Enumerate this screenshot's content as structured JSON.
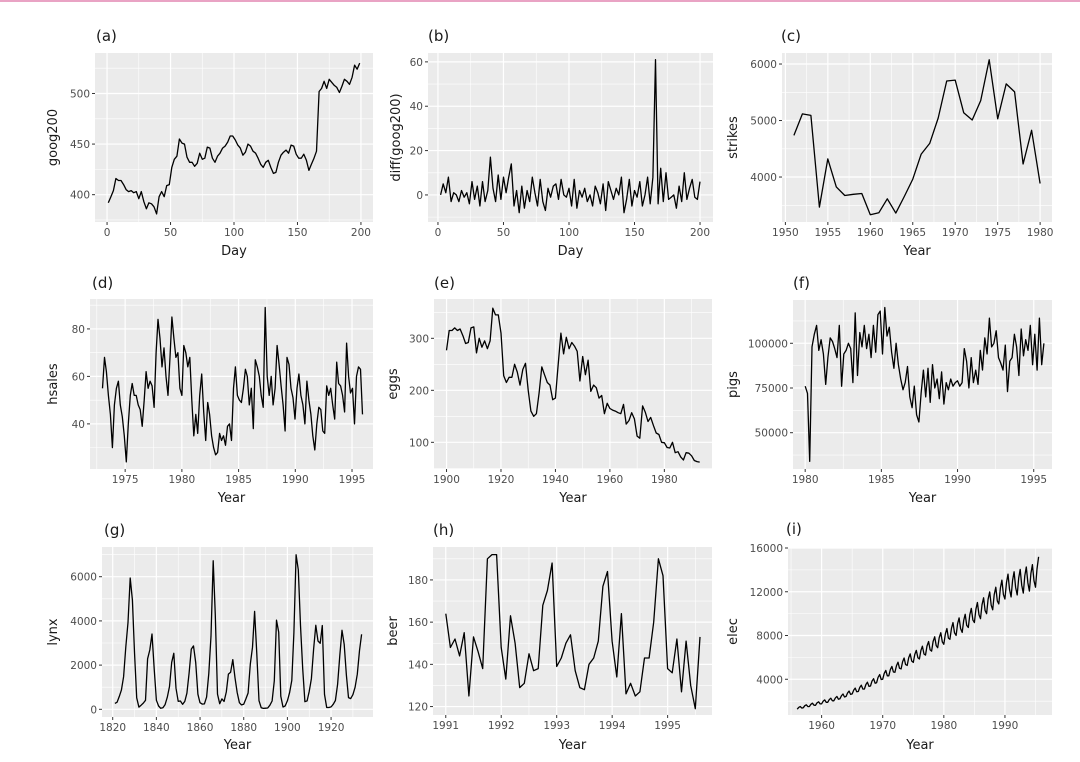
{
  "chart_data": [
    {
      "panel_label": "(a)",
      "type": "line",
      "xlabel": "Day",
      "ylabel": "goog200",
      "xlim": [
        -9.5,
        209.5
      ],
      "ylim": [
        373,
        540
      ],
      "xticks": [
        0,
        50,
        100,
        150,
        200
      ],
      "yticks": [
        400,
        450,
        500
      ],
      "x_start": 1,
      "x_end": 199,
      "grid": true,
      "values": [
        392,
        398,
        404,
        416,
        414,
        414,
        410,
        405,
        403,
        404,
        402,
        403,
        396,
        403,
        393,
        386,
        392,
        391,
        388,
        381,
        398,
        403,
        398,
        409,
        410,
        427,
        435,
        438,
        455,
        451,
        450,
        437,
        432,
        432,
        428,
        431,
        441,
        435,
        436,
        447,
        446,
        436,
        432,
        438,
        441,
        446,
        448,
        452,
        458,
        458,
        454,
        449,
        446,
        439,
        442,
        450,
        448,
        443,
        441,
        436,
        430,
        427,
        432,
        434,
        427,
        421,
        422,
        432,
        439,
        442,
        444,
        441,
        449,
        448,
        440,
        436,
        436,
        440,
        434,
        424,
        430,
        436,
        443,
        502,
        505,
        512,
        505,
        514,
        511,
        508,
        506,
        501,
        507,
        514,
        512,
        509,
        516,
        528,
        524,
        530
      ]
    },
    {
      "panel_label": "(b)",
      "type": "line",
      "xlabel": "Day",
      "ylabel": "diff(goog200)",
      "xlim": [
        -7.6,
        209.9
      ],
      "ylim": [
        -12.2,
        64
      ],
      "xticks": [
        0,
        50,
        100,
        150,
        200
      ],
      "yticks": [
        0,
        20,
        40,
        60
      ],
      "x_start": 2,
      "x_end": 200,
      "grid": true,
      "values": [
        0,
        5,
        1,
        8,
        -3,
        1,
        0,
        -3,
        2,
        -1,
        1,
        -4,
        6,
        -2,
        4,
        -5,
        6,
        -3,
        2,
        17,
        3,
        -3,
        9,
        -2,
        8,
        1,
        8,
        14,
        -5,
        2,
        -8,
        4,
        -6,
        2,
        -3,
        8,
        1,
        -5,
        7,
        -3,
        -7,
        3,
        -1,
        4,
        5,
        -2,
        7,
        0,
        -1,
        3,
        -5,
        7,
        -6,
        2,
        -1,
        3,
        -3,
        0,
        -5,
        4,
        1,
        -4,
        5,
        -7,
        6,
        2,
        -2,
        3,
        0,
        8,
        -8,
        -2,
        7,
        -5,
        2,
        -1,
        6,
        -5,
        0,
        8,
        -4,
        8,
        61,
        -4,
        12,
        -3,
        10,
        -2,
        -1,
        0,
        -6,
        4,
        -3,
        10,
        -2,
        3,
        7,
        -1,
        -2,
        6
      ]
    },
    {
      "panel_label": "(c)",
      "type": "line",
      "xlabel": "Year",
      "ylabel": "strikes",
      "xlim": [
        1949.6,
        1981.4
      ],
      "ylim": [
        3204,
        6195
      ],
      "xticks": [
        1950,
        1955,
        1960,
        1965,
        1970,
        1975,
        1980
      ],
      "yticks": [
        4000,
        5000,
        6000
      ],
      "x_start": 1951,
      "x_end": 1980,
      "grid": true,
      "values": [
        4737,
        5117,
        5091,
        3468,
        4320,
        3825,
        3673,
        3694,
        3708,
        3333,
        3367,
        3614,
        3362,
        3655,
        3963,
        4405,
        4595,
        5045,
        5700,
        5716,
        5138,
        5010,
        5353,
        6074,
        5031,
        5648,
        5506,
        4230,
        4827,
        3885
      ]
    },
    {
      "panel_label": "(d)",
      "type": "line",
      "xlabel": "Year",
      "ylabel": "hsales",
      "xlim": [
        1971.9,
        1996.85
      ],
      "ylim": [
        21,
        92.6
      ],
      "xticks": [
        1975,
        1980,
        1985,
        1990,
        1995
      ],
      "yticks": [
        40,
        60,
        80
      ],
      "x_start": 1973,
      "x_end": 1995.92,
      "grid": true,
      "values": [
        55,
        68,
        62,
        52,
        44,
        30,
        48,
        55,
        58,
        48,
        43,
        35,
        24,
        40,
        52,
        57,
        52,
        52,
        48,
        46,
        39,
        50,
        62,
        55,
        58,
        56,
        47,
        70,
        84,
        76,
        64,
        72,
        60,
        52,
        68,
        85,
        76,
        68,
        70,
        55,
        52,
        73,
        70,
        64,
        68,
        50,
        35,
        44,
        36,
        52,
        61,
        45,
        33,
        49,
        44,
        35,
        30,
        27,
        28,
        36,
        33,
        35,
        31,
        39,
        40,
        33,
        55,
        64,
        52,
        50,
        49,
        55,
        63,
        60,
        48,
        55,
        38,
        67,
        64,
        60,
        52,
        47,
        89,
        60,
        52,
        60,
        48,
        55,
        73,
        65,
        56,
        48,
        37,
        68,
        65,
        55,
        51,
        42,
        55,
        61,
        52,
        48,
        40,
        58,
        50,
        44,
        35,
        29,
        40,
        47,
        46,
        37,
        36,
        56,
        52,
        55,
        48,
        42,
        66,
        57,
        56,
        52,
        45,
        74,
        60,
        53,
        55,
        40,
        60,
        64,
        63,
        44
      ]
    },
    {
      "panel_label": "(e)",
      "type": "line",
      "xlabel": "Year",
      "ylabel": "eggs",
      "xlim": [
        1895.4,
        1997.5
      ],
      "ylim": [
        48.7,
        375.6
      ],
      "xticks": [
        1900,
        1920,
        1940,
        1960,
        1980
      ],
      "yticks": [
        100,
        200,
        300
      ],
      "x_start": 1900,
      "x_end": 1993,
      "grid": true,
      "values": [
        277,
        315,
        315,
        320,
        315,
        318,
        305,
        290,
        292,
        320,
        322,
        272,
        300,
        283,
        295,
        280,
        295,
        358,
        345,
        345,
        310,
        228,
        215,
        225,
        225,
        250,
        235,
        210,
        240,
        252,
        200,
        160,
        150,
        155,
        195,
        245,
        230,
        215,
        210,
        182,
        185,
        250,
        310,
        270,
        302,
        280,
        292,
        285,
        275,
        218,
        265,
        230,
        258,
        198,
        210,
        205,
        185,
        190,
        155,
        175,
        165,
        162,
        160,
        157,
        155,
        173,
        135,
        142,
        157,
        145,
        112,
        108,
        170,
        158,
        140,
        148,
        132,
        118,
        115,
        100,
        99,
        90,
        89,
        100,
        80,
        82,
        72,
        66,
        80,
        79,
        74,
        65,
        63,
        62
      ]
    },
    {
      "panel_label": "(f)",
      "type": "line",
      "xlabel": "Year",
      "ylabel": "pigs",
      "xlim": [
        1979.2,
        1996.2
      ],
      "ylim": [
        29700,
        124200
      ],
      "xticks": [
        1980,
        1985,
        1990,
        1995
      ],
      "yticks": [
        50000,
        75000,
        100000
      ],
      "x_start": 1980,
      "x_end": 1995.67,
      "grid": true,
      "values": [
        76000,
        72000,
        34000,
        98000,
        105000,
        110000,
        96000,
        102000,
        94000,
        77000,
        92000,
        103000,
        101000,
        97000,
        92000,
        110000,
        76000,
        94000,
        96000,
        100000,
        97000,
        78000,
        117000,
        82000,
        106000,
        98000,
        110000,
        97000,
        105000,
        92000,
        110000,
        95000,
        116000,
        118000,
        94000,
        120000,
        104000,
        109000,
        95000,
        86000,
        100000,
        88000,
        80000,
        74000,
        78000,
        87000,
        70000,
        64000,
        76000,
        60000,
        56000,
        72000,
        85000,
        70000,
        86000,
        67000,
        88000,
        75000,
        80000,
        69000,
        84000,
        66000,
        78000,
        74000,
        80000,
        76000,
        78000,
        79000,
        76000,
        78000,
        97000,
        90000,
        75000,
        92000,
        78000,
        85000,
        77000,
        96000,
        85000,
        103000,
        94000,
        114000,
        98000,
        100000,
        107000,
        92000,
        89000,
        85000,
        99000,
        73000,
        90000,
        92000,
        105000,
        98000,
        82000,
        108000,
        93000,
        102000,
        96000,
        110000,
        88000,
        105000,
        85000,
        114000,
        88000,
        100000
      ]
    },
    {
      "panel_label": "(g)",
      "type": "line",
      "xlabel": "Year",
      "ylabel": "lynx",
      "xlim": [
        1815.1,
        1939.2
      ],
      "ylim": [
        -348,
        7344
      ],
      "xticks": [
        1820,
        1840,
        1860,
        1880,
        1900,
        1920
      ],
      "yticks": [
        0,
        2000,
        4000,
        6000
      ],
      "x_start": 1821,
      "x_end": 1934,
      "grid": true,
      "values": [
        269,
        321,
        585,
        871,
        1475,
        2821,
        3928,
        5943,
        4950,
        2577,
        523,
        98,
        184,
        279,
        409,
        2285,
        2685,
        3409,
        1824,
        409,
        151,
        45,
        68,
        213,
        546,
        1033,
        2129,
        2536,
        957,
        361,
        377,
        225,
        360,
        731,
        1638,
        2725,
        2871,
        2119,
        684,
        299,
        236,
        245,
        552,
        1623,
        3311,
        6721,
        4254,
        687,
        255,
        473,
        358,
        784,
        1594,
        1676,
        2251,
        1426,
        756,
        299,
        201,
        229,
        469,
        736,
        2042,
        2811,
        4431,
        2511,
        389,
        73,
        39,
        49,
        59,
        188,
        377,
        1292,
        4031,
        3495,
        587,
        105,
        153,
        387,
        758,
        1307,
        3465,
        6991,
        6313,
        3794,
        1836,
        345,
        382,
        808,
        1388,
        2713,
        3800,
        3091,
        2985,
        3790,
        674,
        81,
        80,
        108,
        229,
        399,
        1132,
        2432,
        3574,
        2935,
        1537,
        529,
        485,
        662,
        1000,
        1590,
        2657,
        3396
      ]
    },
    {
      "panel_label": "(h)",
      "type": "line",
      "xlabel": "Year",
      "ylabel": "beer",
      "xlim": [
        1990.77,
        1995.8
      ],
      "ylim": [
        116,
        195.6
      ],
      "xticks": [
        1991,
        1992,
        1993,
        1994,
        1995
      ],
      "yticks": [
        120,
        140,
        160,
        180
      ],
      "x_start": 1991,
      "x_end": 1995.583,
      "grid": true,
      "values": [
        164,
        148,
        152,
        144,
        155,
        125,
        153,
        146,
        138,
        190,
        192,
        192,
        148,
        133,
        163,
        150,
        129,
        131,
        145,
        137,
        138,
        168,
        175,
        188,
        139,
        143,
        150,
        154,
        137,
        129,
        128,
        140,
        143,
        151,
        177,
        184,
        151,
        134,
        164,
        126,
        131,
        125,
        127,
        143,
        143,
        160,
        190,
        182,
        138,
        136,
        152,
        127,
        151,
        130,
        119,
        153
      ]
    },
    {
      "panel_label": "(i)",
      "type": "line",
      "xlabel": "Year",
      "ylabel": "elec",
      "xlim": [
        1954.5,
        1997.7
      ],
      "ylim": [
        733,
        16000
      ],
      "xticks": [
        1960,
        1970,
        1980,
        1990
      ],
      "yticks": [
        4000,
        8000,
        12000,
        16000
      ],
      "x_start": 1956,
      "x_end": 1995.5,
      "grid": true,
      "values": [
        1260,
        1430,
        1510,
        1360,
        1400,
        1580,
        1670,
        1500,
        1510,
        1710,
        1810,
        1630,
        1620,
        1840,
        1940,
        1750,
        1760,
        1990,
        2110,
        1890,
        1890,
        2140,
        2270,
        2040,
        2030,
        2300,
        2430,
        2180,
        2210,
        2500,
        2650,
        2380,
        2430,
        2750,
        2920,
        2620,
        2660,
        3010,
        3190,
        2860,
        2880,
        3260,
        3460,
        3100,
        3110,
        3520,
        3730,
        3350,
        3380,
        3830,
        4050,
        3640,
        3690,
        4180,
        4430,
        3980,
        4010,
        4540,
        4810,
        4320,
        4320,
        4900,
        5180,
        4660,
        4640,
        5250,
        5560,
        5000,
        4950,
        5610,
        5940,
        5340,
        5270,
        5970,
        6320,
        5670,
        5540,
        6270,
        6640,
        5970,
        5850,
        6630,
        7020,
        6310,
        6210,
        7040,
        7450,
        6690,
        6570,
        7450,
        7880,
        7080,
        6890,
        7800,
        8260,
        7420,
        7200,
        8160,
        8640,
        7760,
        7650,
        8670,
        9180,
        8250,
        8010,
        9080,
        9610,
        8630,
        8280,
        9380,
        9940,
        8920,
        8730,
        9890,
        10480,
        9410,
        9180,
        10400,
        11020,
        9890,
        9540,
        10810,
        11450,
        10280,
        9990,
        11320,
        11990,
        10770,
        10350,
        11730,
        12420,
        11160,
        10890,
        12340,
        13070,
        11740,
        11340,
        12850,
        13610,
        12220,
        11520,
        13060,
        13820,
        12420,
        11700,
        13260,
        14040,
        12610,
        11880,
        13460,
        14260,
        12800,
        12060,
        13670,
        14470,
        13000,
        12420,
        14080,
        15200
      ]
    }
  ],
  "colors": {
    "panel_background": "#ebebeb",
    "grid": "#ffffff",
    "line": "#000000",
    "tick_text": "#4d4d4d",
    "top_border": "#e9a3c4"
  }
}
